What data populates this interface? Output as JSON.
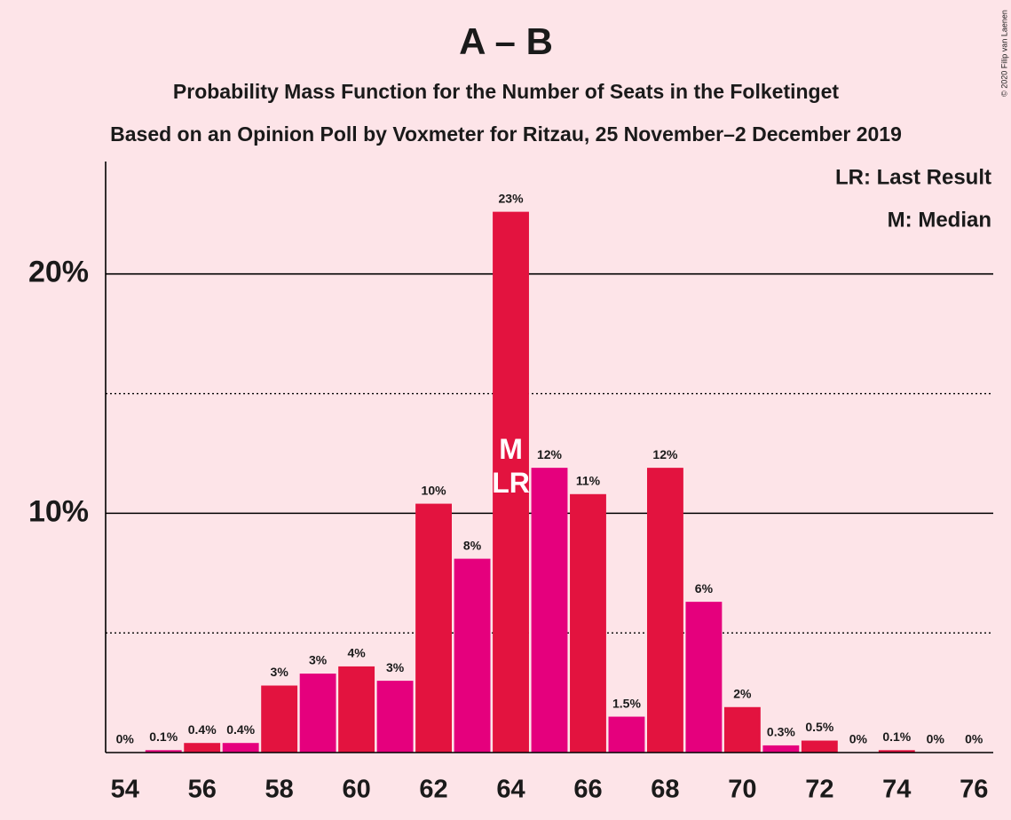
{
  "chart_data": {
    "type": "bar",
    "title": "A – B",
    "subtitle": "Probability Mass Function for the Number of Seats in the Folketinget",
    "subtitle2": "Based on an Opinion Poll by Voxmeter for Ritzau, 25 November–2 December 2019",
    "copyright": "© 2020 Filip van Laenen",
    "x": [
      54,
      55,
      56,
      57,
      58,
      59,
      60,
      61,
      62,
      63,
      64,
      65,
      66,
      67,
      68,
      69,
      70,
      71,
      72,
      73,
      74,
      75,
      76
    ],
    "values": [
      0,
      0.1,
      0.4,
      0.4,
      2.8,
      3.3,
      3.6,
      3.0,
      10.4,
      8.1,
      22.6,
      11.9,
      10.8,
      1.5,
      11.9,
      6.3,
      1.9,
      0.3,
      0.5,
      0,
      0.1,
      0,
      0
    ],
    "value_labels": [
      "0%",
      "0.1%",
      "0.4%",
      "0.4%",
      "3%",
      "3%",
      "4%",
      "3%",
      "10%",
      "8%",
      "23%",
      "12%",
      "11%",
      "1.5%",
      "12%",
      "6%",
      "2%",
      "0.3%",
      "0.5%",
      "0%",
      "0.1%",
      "0%",
      "0%"
    ],
    "colors": [
      "#e3133f",
      "#e5007d"
    ],
    "xlim": [
      53.5,
      76.5
    ],
    "xticks": [
      54,
      56,
      58,
      60,
      62,
      64,
      66,
      68,
      70,
      72,
      74,
      76
    ],
    "ylim": [
      0,
      24.7
    ],
    "yticks": [
      {
        "value": 10,
        "label": "10%"
      },
      {
        "value": 20,
        "label": "20%"
      }
    ],
    "minor_yticks": [
      5,
      15
    ],
    "grid": true,
    "markers": [
      {
        "x": 64,
        "label": "M"
      },
      {
        "x": 64,
        "label": "LR"
      }
    ],
    "legend": [
      "LR: Last Result",
      "M: Median"
    ]
  }
}
